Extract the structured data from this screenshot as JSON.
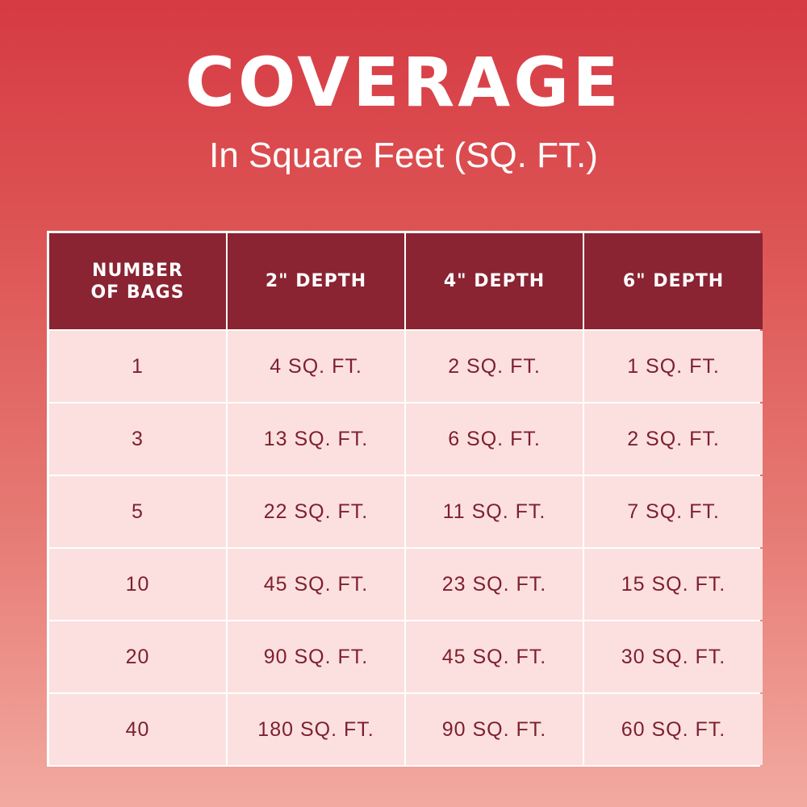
{
  "title": "COVERAGE",
  "subtitle": "In Square Feet (SQ. FT.)",
  "colors": {
    "header_bg": "#8a2332",
    "cell_bg": "#fbe0df",
    "cell_text": "#7e1f2e",
    "background_top": "#d63a43",
    "background_bottom": "#f2aaa0"
  },
  "chart_data": {
    "type": "table",
    "title": "COVERAGE",
    "subtitle": "In Square Feet (SQ. FT.)",
    "columns": [
      "NUMBER\nOF BAGS",
      "2\" DEPTH",
      "4\" DEPTH",
      "6\" DEPTH"
    ],
    "rows": [
      [
        "1",
        "4 SQ. FT.",
        "2 SQ. FT.",
        "1 SQ. FT."
      ],
      [
        "3",
        "13 SQ. FT.",
        "6 SQ. FT.",
        "2 SQ. FT."
      ],
      [
        "5",
        "22 SQ. FT.",
        "11 SQ. FT.",
        "7 SQ. FT."
      ],
      [
        "10",
        "45 SQ. FT.",
        "23 SQ. FT.",
        "15 SQ. FT."
      ],
      [
        "20",
        "90 SQ. FT.",
        "45 SQ. FT.",
        "30 SQ. FT."
      ],
      [
        "40",
        "180 SQ. FT.",
        "90 SQ. FT.",
        "60 SQ. FT."
      ]
    ]
  }
}
